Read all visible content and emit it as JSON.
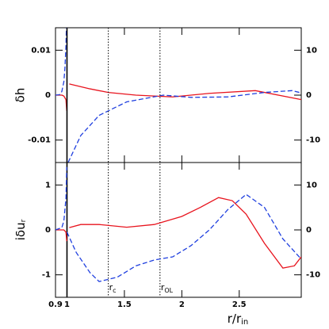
{
  "chart_data": [
    {
      "type": "line",
      "ylabel": "δh",
      "xlim": [
        0.9,
        3.04
      ],
      "xticks": [
        0.9,
        1,
        1.5,
        2,
        2.5
      ],
      "ylim": [
        -0.015,
        0.015
      ],
      "yticks": [
        -0.01,
        0,
        0.01
      ],
      "y2lim": [
        -15,
        15
      ],
      "y2ticks": [
        -10,
        0,
        10
      ],
      "series": [
        {
          "color": "#e8141e",
          "dash": false,
          "x": [
            0.9,
            0.955,
            0.973,
            0.991,
            0.998,
            null,
            1.02,
            1.2,
            1.36,
            1.6,
            1.92,
            2.24,
            2.64,
            2.96,
            3.04
          ],
          "values": [
            0,
            0,
            -0.0002,
            -0.001,
            -0.0035,
            null,
            0.0025,
            0.0014,
            0.0006,
            0,
            -0.0004,
            0.0004,
            0.001,
            -0.0006,
            -0.001
          ]
        },
        {
          "color": "#1f3fdf",
          "dash": true,
          "axis": "y2",
          "x": [
            0.9,
            0.936,
            0.955,
            0.973,
            0.982,
            0.991,
            0.995,
            null,
            1.01,
            1.12,
            1.28,
            1.52,
            1.84,
            2.08,
            2.4,
            2.72,
            2.96,
            3.04
          ],
          "values": [
            0,
            0.1,
            0.8,
            3,
            6,
            11,
            15,
            null,
            -15,
            -9,
            -4.5,
            -1.5,
            0,
            -0.5,
            -0.4,
            0.6,
            1,
            0.5
          ]
        }
      ]
    },
    {
      "type": "line",
      "ylabel": "iδu",
      "ylabel_sub": "r",
      "xlabel": "r/r",
      "xlabel_sub": "in",
      "xlim": [
        0.9,
        3.04
      ],
      "xticks": [
        0.9,
        1,
        1.5,
        2,
        2.5
      ],
      "ylim": [
        -1.5,
        1.5
      ],
      "yticks": [
        -1,
        0,
        1
      ],
      "y2lim": [
        -15,
        15
      ],
      "y2ticks": [
        -10,
        0,
        10
      ],
      "vlines": [
        {
          "x": 1,
          "style": "solid"
        },
        {
          "x": 1.36,
          "style": "dotted",
          "label": "r",
          "sub": "c"
        },
        {
          "x": 1.81,
          "style": "dotted",
          "label": "r",
          "sub": "OL"
        }
      ],
      "series": [
        {
          "color": "#e8141e",
          "dash": false,
          "x": [
            0.9,
            0.973,
            0.991,
            0.998,
            null,
            1.02,
            1.12,
            1.28,
            1.52,
            1.76,
            2,
            2.16,
            2.32,
            2.44,
            2.56,
            2.72,
            2.88,
            2.98,
            3.04
          ],
          "values": [
            0,
            0,
            -0.05,
            -0.25,
            null,
            0.05,
            0.12,
            0.12,
            0.06,
            0.12,
            0.3,
            0.5,
            0.72,
            0.65,
            0.35,
            -0.3,
            -0.85,
            -0.8,
            -0.6
          ]
        },
        {
          "color": "#1f3fdf",
          "dash": true,
          "axis": "y2",
          "x": [
            0.9,
            0.955,
            0.973,
            0.991,
            0.998,
            null,
            1.0,
            1.08,
            1.2,
            1.28,
            1.44,
            1.6,
            1.76,
            1.92,
            2.08,
            2.24,
            2.4,
            2.56,
            2.72,
            2.88,
            3.04
          ],
          "values": [
            0,
            0.5,
            2,
            7,
            14,
            null,
            -0.5,
            -5,
            -9.5,
            -11.5,
            -10.5,
            -8,
            -6.7,
            -6,
            -3.5,
            0,
            4.5,
            7.9,
            5,
            -2,
            -6.5
          ]
        }
      ]
    }
  ]
}
